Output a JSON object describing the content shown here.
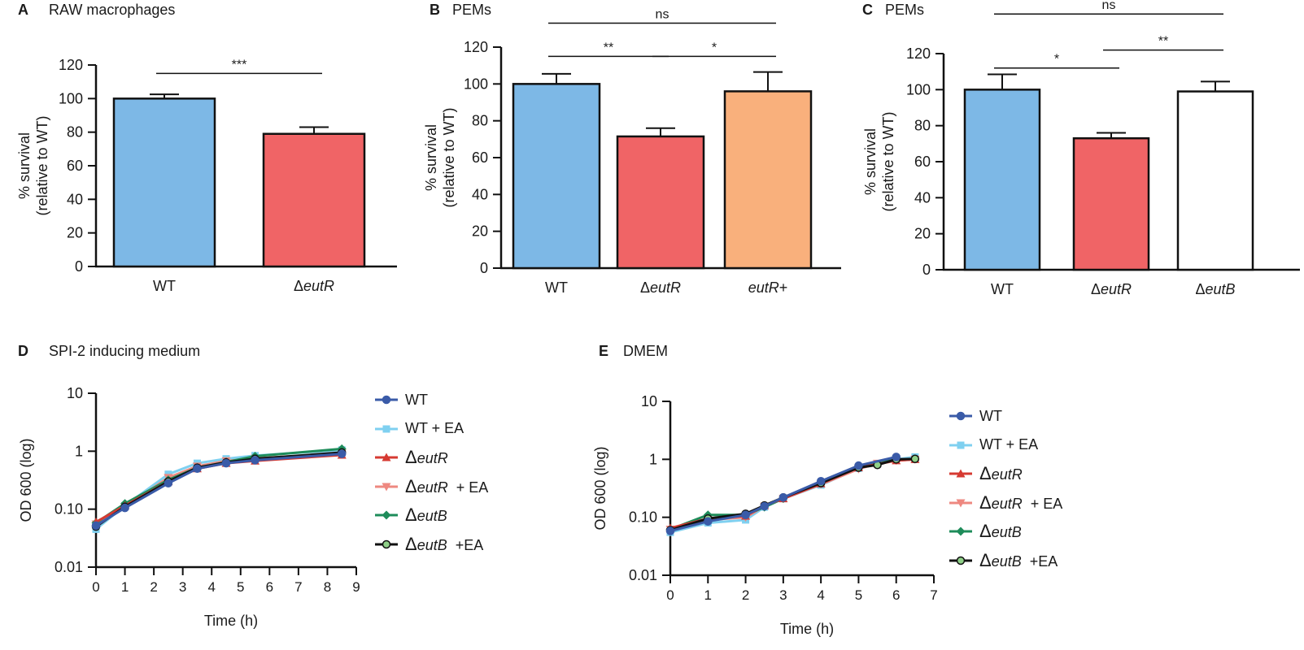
{
  "chart_data": [
    {
      "id": "A",
      "type": "bar",
      "letter": "A",
      "title": "RAW macrophages",
      "ylabel_line1": "% survival",
      "ylabel_line2": "(relative to WT)",
      "ylim": [
        0,
        120
      ],
      "yticks": [
        0,
        20,
        40,
        60,
        80,
        100,
        120
      ],
      "categories": [
        {
          "prefix": "",
          "italic": "WT",
          "suffix": "",
          "plain": true
        },
        {
          "prefix": "Δ",
          "italic": "eutR",
          "suffix": "",
          "plain": false
        }
      ],
      "values": [
        100,
        79
      ],
      "errors": [
        2.5,
        4
      ],
      "colors": [
        "#7db8e6",
        "#f06466"
      ],
      "significance": [
        {
          "from": 0,
          "to": 1,
          "label": "***",
          "y": 115
        }
      ]
    },
    {
      "id": "B",
      "type": "bar",
      "letter": "B",
      "title": "PEMs",
      "ylabel_line1": "% survival",
      "ylabel_line2": "(relative to WT)",
      "ylim": [
        0,
        120
      ],
      "yticks": [
        0,
        20,
        40,
        60,
        80,
        100,
        120
      ],
      "categories": [
        {
          "prefix": "",
          "italic": "WT",
          "suffix": "",
          "plain": true
        },
        {
          "prefix": "Δ",
          "italic": "eutR",
          "suffix": "",
          "plain": false
        },
        {
          "prefix": "",
          "italic": "eutR",
          "suffix": "+",
          "plain": false
        }
      ],
      "values": [
        100,
        71.5,
        96
      ],
      "errors": [
        5.5,
        4.5,
        10.5
      ],
      "colors": [
        "#7db8e6",
        "#f06466",
        "#f9b07c"
      ],
      "significance": [
        {
          "from": 0,
          "to": 1,
          "label": "**",
          "y": 115
        },
        {
          "from": 1,
          "to": 2,
          "label": "*",
          "y": 115
        },
        {
          "from": 0,
          "to": 2,
          "label": "ns",
          "y": 133
        }
      ]
    },
    {
      "id": "C",
      "type": "bar",
      "letter": "C",
      "title": "PEMs",
      "ylabel_line1": "% survival",
      "ylabel_line2": "(relative to WT)",
      "ylim": [
        0,
        120
      ],
      "yticks": [
        0,
        20,
        40,
        60,
        80,
        100,
        120
      ],
      "categories": [
        {
          "prefix": "",
          "italic": "WT",
          "suffix": "",
          "plain": true
        },
        {
          "prefix": "Δ",
          "italic": "eutR",
          "suffix": "",
          "plain": false
        },
        {
          "prefix": "Δ",
          "italic": "eutB",
          "suffix": "",
          "plain": false
        }
      ],
      "values": [
        100,
        73,
        99
      ],
      "errors": [
        8.5,
        3,
        5.5
      ],
      "colors": [
        "#7db8e6",
        "#f06466",
        "#ffffff"
      ],
      "significance": [
        {
          "from": 0,
          "to": 1,
          "label": "*",
          "y": 112
        },
        {
          "from": 1,
          "to": 2,
          "label": "**",
          "y": 122
        },
        {
          "from": 0,
          "to": 2,
          "label": "ns",
          "y": 142
        }
      ]
    },
    {
      "id": "D",
      "type": "line",
      "letter": "D",
      "title": "SPI-2 inducing medium",
      "xlabel": "Time (h)",
      "ylabel": "OD 600  (log)",
      "yscale": "log",
      "xlim": [
        0,
        9
      ],
      "ylim": [
        0.01,
        10
      ],
      "xticks": [
        0,
        1,
        2,
        3,
        4,
        5,
        6,
        7,
        8,
        9
      ],
      "yticks": [
        0.01,
        0.1,
        1,
        10
      ],
      "ytick_labels": [
        "0.01",
        "0.10",
        "1",
        "10"
      ],
      "x": [
        0,
        1,
        2.5,
        3.5,
        4.5,
        5.5,
        8.5
      ],
      "series": [
        {
          "key": "wt",
          "values": [
            0.052,
            0.105,
            0.28,
            0.5,
            0.62,
            0.7,
            0.9
          ]
        },
        {
          "key": "wt_ea",
          "values": [
            0.045,
            0.115,
            0.4,
            0.62,
            0.74,
            0.84,
            1.05
          ]
        },
        {
          "key": "eutr",
          "values": [
            0.06,
            0.115,
            0.3,
            0.5,
            0.62,
            0.68,
            0.86
          ]
        },
        {
          "key": "eutr_ea",
          "values": [
            0.055,
            0.11,
            0.35,
            0.55,
            0.68,
            0.75,
            0.92
          ]
        },
        {
          "key": "eutb",
          "values": [
            0.058,
            0.125,
            0.32,
            0.52,
            0.65,
            0.82,
            1.1
          ]
        },
        {
          "key": "eutb_ea",
          "values": [
            0.05,
            0.11,
            0.3,
            0.52,
            0.64,
            0.74,
            0.95
          ]
        }
      ]
    },
    {
      "id": "E",
      "type": "line",
      "letter": "E",
      "title": "DMEM",
      "xlabel": "Time (h)",
      "ylabel": "OD 600  (log)",
      "yscale": "log",
      "xlim": [
        0,
        7
      ],
      "ylim": [
        0.01,
        10
      ],
      "xticks": [
        0,
        1,
        2,
        3,
        4,
        5,
        6,
        7
      ],
      "yticks": [
        0.01,
        0.1,
        1,
        10
      ],
      "ytick_labels": [
        "0.01",
        "0.10",
        "1",
        "10"
      ],
      "x": [
        0,
        1,
        2,
        2.5,
        3,
        4,
        5,
        5.5,
        6,
        6.5
      ],
      "series": [
        {
          "key": "wt",
          "values": [
            0.058,
            0.085,
            0.11,
            0.155,
            0.22,
            0.42,
            0.78,
            null,
            1.1,
            null
          ]
        },
        {
          "key": "wt_ea",
          "values": [
            0.055,
            0.08,
            0.09,
            0.15,
            0.21,
            0.36,
            0.7,
            null,
            1.0,
            1.1
          ]
        },
        {
          "key": "eutr",
          "values": [
            0.065,
            0.095,
            0.105,
            0.16,
            0.21,
            0.38,
            0.72,
            null,
            0.95,
            1.0
          ]
        },
        {
          "key": "eutr_ea",
          "values": [
            0.062,
            0.09,
            0.1,
            0.155,
            0.21,
            0.37,
            0.68,
            0.85,
            0.95,
            1.0
          ]
        },
        {
          "key": "eutb",
          "values": [
            0.062,
            0.11,
            0.11,
            0.15,
            0.21,
            0.4,
            0.75,
            null,
            1.05,
            null
          ]
        },
        {
          "key": "eutb_ea",
          "values": [
            0.06,
            0.095,
            0.115,
            0.16,
            0.22,
            0.39,
            0.72,
            0.8,
            1.0,
            1.02
          ]
        }
      ]
    }
  ],
  "legend": [
    {
      "key": "wt",
      "delta": "",
      "italic": "",
      "text": "WT",
      "color": "#3a5ba8",
      "marker": "circle",
      "fill": "#3a5ba8"
    },
    {
      "key": "wt_ea",
      "delta": "",
      "italic": "",
      "text": "WT + EA",
      "color": "#7fd0f0",
      "marker": "square",
      "fill": "#7fd0f0"
    },
    {
      "key": "eutr",
      "delta": "Δ",
      "italic": "eutR",
      "text": "",
      "color": "#d63a32",
      "marker": "triangle-up",
      "fill": "#d63a32"
    },
    {
      "key": "eutr_ea",
      "delta": "Δ",
      "italic": "eutR",
      "text": "  + EA",
      "color": "#ee8880",
      "marker": "triangle-down",
      "fill": "#ee8880"
    },
    {
      "key": "eutb",
      "delta": "Δ",
      "italic": "eutB",
      "text": "",
      "color": "#1e8c5a",
      "marker": "diamond",
      "fill": "#1e8c5a"
    },
    {
      "key": "eutb_ea",
      "delta": "Δ",
      "italic": "eutB",
      "text": "  +EA",
      "color": "#111111",
      "marker": "circle",
      "fill": "#8fd088"
    }
  ]
}
